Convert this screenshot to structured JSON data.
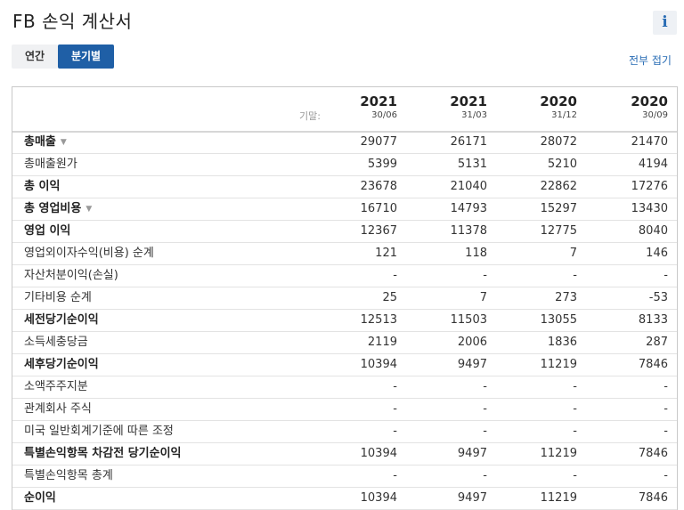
{
  "page": {
    "title": "FB 손익 계산서",
    "info_icon": "i"
  },
  "tabs": [
    {
      "label": "연간",
      "active": false
    },
    {
      "label": "분기별",
      "active": true
    }
  ],
  "collapse_all_label": "전부 접기",
  "table": {
    "period_label": "기말:",
    "columns": [
      {
        "year": "2021",
        "date": "30/06"
      },
      {
        "year": "2021",
        "date": "31/03"
      },
      {
        "year": "2020",
        "date": "31/12"
      },
      {
        "year": "2020",
        "date": "30/09"
      }
    ],
    "rows": [
      {
        "label": "총매출",
        "bold": true,
        "expandable": true,
        "values": [
          "29077",
          "26171",
          "28072",
          "21470"
        ]
      },
      {
        "label": "총매출원가",
        "bold": false,
        "expandable": false,
        "values": [
          "5399",
          "5131",
          "5210",
          "4194"
        ]
      },
      {
        "label": "총 이익",
        "bold": true,
        "expandable": false,
        "values": [
          "23678",
          "21040",
          "22862",
          "17276"
        ]
      },
      {
        "label": "총 영업비용",
        "bold": true,
        "expandable": true,
        "values": [
          "16710",
          "14793",
          "15297",
          "13430"
        ]
      },
      {
        "label": "영업 이익",
        "bold": true,
        "expandable": false,
        "values": [
          "12367",
          "11378",
          "12775",
          "8040"
        ]
      },
      {
        "label": "영업외이자수익(비용) 순계",
        "bold": false,
        "expandable": false,
        "values": [
          "121",
          "118",
          "7",
          "146"
        ]
      },
      {
        "label": "자산처분이익(손실)",
        "bold": false,
        "expandable": false,
        "values": [
          "-",
          "-",
          "-",
          "-"
        ]
      },
      {
        "label": "기타비용 순계",
        "bold": false,
        "expandable": false,
        "values": [
          "25",
          "7",
          "273",
          "-53"
        ]
      },
      {
        "label": "세전당기순이익",
        "bold": true,
        "expandable": false,
        "values": [
          "12513",
          "11503",
          "13055",
          "8133"
        ]
      },
      {
        "label": "소득세충당금",
        "bold": false,
        "expandable": false,
        "values": [
          "2119",
          "2006",
          "1836",
          "287"
        ]
      },
      {
        "label": "세후당기순이익",
        "bold": true,
        "expandable": false,
        "values": [
          "10394",
          "9497",
          "11219",
          "7846"
        ]
      },
      {
        "label": "소액주주지분",
        "bold": false,
        "expandable": false,
        "values": [
          "-",
          "-",
          "-",
          "-"
        ]
      },
      {
        "label": "관계회사 주식",
        "bold": false,
        "expandable": false,
        "values": [
          "-",
          "-",
          "-",
          "-"
        ]
      },
      {
        "label": "미국 일반회계기준에 따른 조정",
        "bold": false,
        "expandable": false,
        "values": [
          "-",
          "-",
          "-",
          "-"
        ]
      },
      {
        "label": "특별손익항목 차감전 당기순이익",
        "bold": true,
        "expandable": false,
        "values": [
          "10394",
          "9497",
          "11219",
          "7846"
        ]
      },
      {
        "label": "특별손익항목 총계",
        "bold": false,
        "expandable": false,
        "values": [
          "-",
          "-",
          "-",
          "-"
        ]
      },
      {
        "label": "순이익",
        "bold": true,
        "expandable": false,
        "values": [
          "10394",
          "9497",
          "11219",
          "7846"
        ]
      }
    ]
  }
}
